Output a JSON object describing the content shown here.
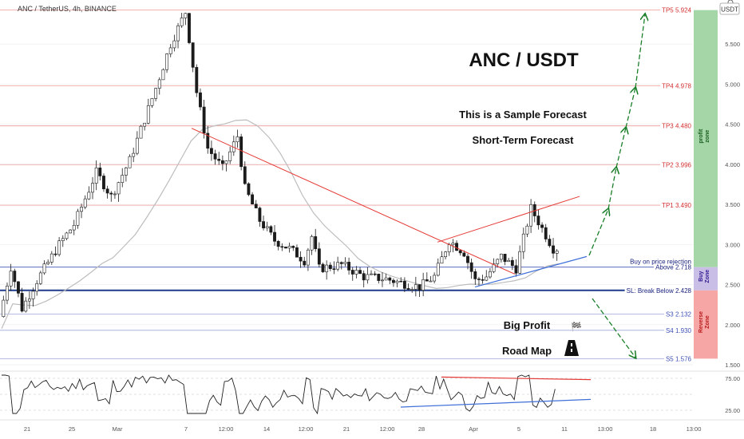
{
  "header": {
    "symbol": "ANC / TetherUS, 4h, BINANCE",
    "quote_badge": "USDT"
  },
  "texts": {
    "big_title": "ANC / USDT",
    "sample": "This is a Sample Forecast",
    "short_term": "Short-Term Forecast",
    "big_profit": "Big Profit",
    "road_map": "Road Map",
    "flag": "🏁"
  },
  "zones": {
    "profit": {
      "label": "profit zone",
      "color": "#a5d6a7",
      "top": 5.924,
      "bottom": 2.718
    },
    "buy": {
      "label": "Buy Zone",
      "color": "#c9bfe6",
      "top": 2.718,
      "bottom": 2.428
    },
    "reverse": {
      "label": "Reverse Zone",
      "color": "#f7a6a6",
      "top": 2.428,
      "bottom": 1.576
    }
  },
  "colors": {
    "target_line": "#ef9a9a",
    "support_line": "#9fa8da",
    "entry_line": "#1e3a8a",
    "trend_red": "#e53935",
    "trend_blue": "#3f6fd8",
    "forecast_arrow": "#1b7f2a",
    "candle_up": "#1b1b1b",
    "candle_down": "#1b1b1b",
    "ma": "#bdbdbd",
    "rsi": "#222222"
  },
  "chart_data": {
    "type": "candlestick",
    "ylim": [
      1.45,
      6.0
    ],
    "y_ticks": [
      "5.500",
      "5.000",
      "4.500",
      "4.000",
      "3.500",
      "3.000",
      "2.500",
      "2.000",
      "1.500"
    ],
    "x_ticks": [
      "21",
      "25",
      "Mar",
      "7",
      "12:00",
      "14",
      "12:00",
      "21",
      "12:00",
      "28",
      "Apr",
      "5",
      "11",
      "13:00",
      "18",
      "13:00"
    ],
    "levels": [
      {
        "label": "TP5",
        "value": 5.924,
        "text": "TP5 5.924",
        "kind": "target"
      },
      {
        "label": "TP4",
        "value": 4.978,
        "text": "TP4 4.978",
        "kind": "target"
      },
      {
        "label": "TP3",
        "value": 4.48,
        "text": "TP3 4.480",
        "kind": "target"
      },
      {
        "label": "TP2",
        "value": 3.996,
        "text": "TP2 3.996",
        "kind": "target"
      },
      {
        "label": "TP1",
        "value": 3.49,
        "text": "TP1 3.490",
        "kind": "target"
      },
      {
        "label": "Buy",
        "value": 2.718,
        "text": "Above 2.718",
        "kind": "entry"
      },
      {
        "label": "SL",
        "value": 2.428,
        "text": "SL: Break Below 2.428",
        "kind": "stop"
      },
      {
        "label": "S3",
        "value": 2.132,
        "text": "S3 2.132",
        "kind": "support"
      },
      {
        "label": "S4",
        "value": 1.93,
        "text": "S4 1.930",
        "kind": "support"
      },
      {
        "label": "S5",
        "value": 1.576,
        "text": "S5 1.576",
        "kind": "support"
      }
    ],
    "buy_note": "Buy on price rejection",
    "rsi": {
      "ticks": [
        "75.00",
        "25.00"
      ],
      "ylim": [
        15,
        85
      ]
    }
  }
}
